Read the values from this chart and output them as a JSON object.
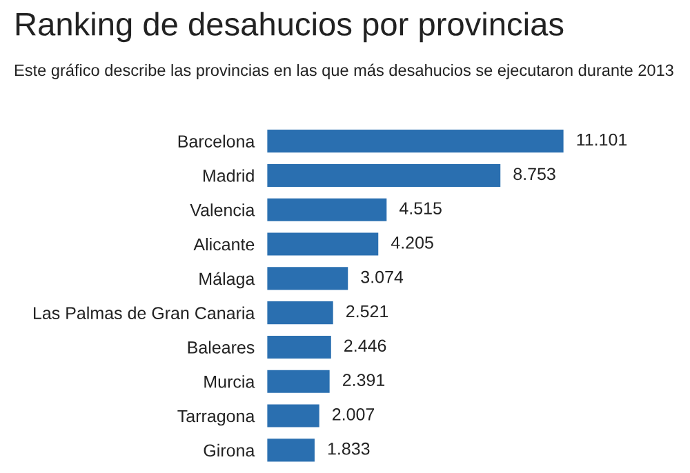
{
  "chart_data": {
    "type": "bar",
    "orientation": "horizontal",
    "title": "Ranking de desahucios por provincias",
    "subtitle": "Este gráfico describe las provincias en las que más desahucios se ejecutaron durante 2013",
    "categories": [
      "Barcelona",
      "Madrid",
      "Valencia",
      "Alicante",
      "Málaga",
      "Las Palmas de Gran Canaria",
      "Baleares",
      "Murcia",
      "Tarragona",
      "Girona"
    ],
    "values": [
      11101,
      8753,
      4515,
      4205,
      3074,
      2521,
      2446,
      2391,
      2007,
      1833
    ],
    "value_labels": [
      "11.101",
      "8.753",
      "4.515",
      "4.205",
      "3.074",
      "2.521",
      "2.446",
      "2.391",
      "2.007",
      "1.833"
    ],
    "color": "#2a6fb0",
    "grid": false,
    "legend": false
  }
}
